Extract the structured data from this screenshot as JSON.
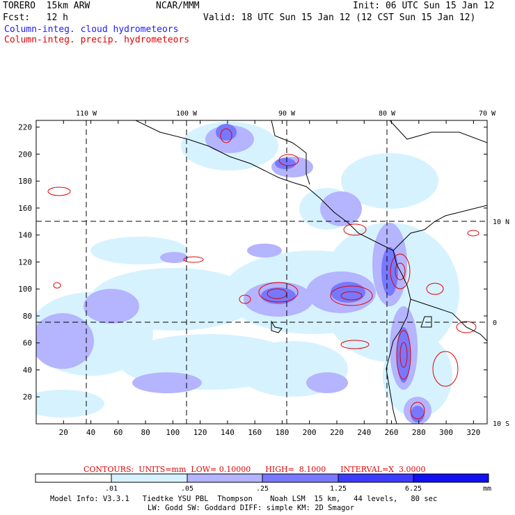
{
  "header": {
    "model": "TORERO  15km ARW",
    "center": "NCAR/MMM",
    "init": "Init: 06 UTC Sun 15 Jan 12",
    "fcst": "Fcst:   12 h",
    "valid": "Valid: 18 UTC Sun 15 Jan 12 (12 CST Sun 15 Jan 12)",
    "field1": "Column-integ. cloud hydrometeors",
    "field2": "Column-integ. precip. hydrometeors"
  },
  "map": {
    "lon_labels": [
      "110 W",
      "100 W",
      "90 W",
      "80 W",
      "70 W"
    ],
    "lat_labels": [
      "10 N",
      "0",
      "10 S"
    ],
    "x_ticks": [
      "20",
      "40",
      "60",
      "80",
      "100",
      "120",
      "140",
      "160",
      "180",
      "200",
      "220",
      "240",
      "260",
      "280",
      "300",
      "320"
    ],
    "y_ticks": [
      "20",
      "40",
      "60",
      "80",
      "100",
      "120",
      "140",
      "160",
      "180",
      "200",
      "220"
    ],
    "colors": {
      "fill_lightest": "#d6f2ff",
      "fill_light": "#b4b4ff",
      "fill_mid": "#7878ff",
      "fill_dark": "#3c3cff",
      "contour": "#e00000",
      "coast": "#000000"
    }
  },
  "contours": {
    "label": "CONTOURS:",
    "units": "UNITS=mm",
    "low": "LOW= 0.10000",
    "high": "HIGH=  8.1000",
    "interval": "INTERVAL=X  3.0000"
  },
  "colorbar": {
    "labels": [
      ".01",
      ".05",
      ".25",
      "1.25",
      "6.25"
    ],
    "unit": "mm",
    "colors": [
      "#ffffff",
      "#d6f2ff",
      "#b4b4ff",
      "#7878ff",
      "#3c3cff",
      "#1010f0"
    ]
  },
  "footer": {
    "line1": "Model Info: V3.3.1   Tiedtke YSU PBL  Thompson    Noah LSM  15 km,   44 levels,   80 sec",
    "line2": "LW: Godd SW: Goddard DIFF: simple KM: 2D Smagor"
  }
}
